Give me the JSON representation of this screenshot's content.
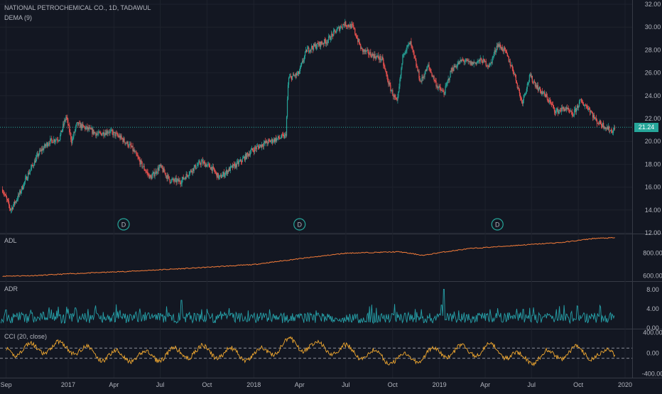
{
  "header": {
    "title": "NATIONAL PETROCHEMICAL CO., 1D, TADAWUL",
    "indicator": "DEMA (9)"
  },
  "panes": {
    "adl_label": "ADL",
    "adr_label": "ADR",
    "cci_label": "CCI (20, close)"
  },
  "current_price": "21.24",
  "dividend_marker": "D",
  "colors": {
    "background": "#131722",
    "grid": "#1e222d",
    "up": "#26a69a",
    "down": "#ef5350",
    "adl": "#f57c39",
    "adr": "#26a0a8",
    "cci": "#f0a830",
    "dashed": "#b2b5be"
  },
  "chart_data": [
    {
      "type": "candlestick",
      "title": "NATIONAL PETROCHEMICAL CO., 1D, TADAWUL",
      "x_ticks": [
        "Sep",
        "2017",
        "Apr",
        "Jul",
        "Oct",
        "2018",
        "Apr",
        "Jul",
        "Oct",
        "2019",
        "Apr",
        "Jul",
        "Oct",
        "2020"
      ],
      "y_ticks": [
        "32.00",
        "30.00",
        "28.00",
        "26.00",
        "24.00",
        "22.00",
        "20.00",
        "18.00",
        "16.00",
        "14.00",
        "12.00"
      ],
      "ylim": [
        12,
        32
      ],
      "x_range": [
        "2016-08",
        "2020-01"
      ],
      "series": [
        {
          "name": "NATIONAL PETROCHEMICAL CO.",
          "points": [
            {
              "x": "2016-08-25",
              "y": 15.8
            },
            {
              "x": "2016-09-10",
              "y": 14.0
            },
            {
              "x": "2016-09-25",
              "y": 15.2
            },
            {
              "x": "2016-10-15",
              "y": 17.2
            },
            {
              "x": "2016-11-05",
              "y": 19.0
            },
            {
              "x": "2016-11-25",
              "y": 20.0
            },
            {
              "x": "2016-12-15",
              "y": 20.3
            },
            {
              "x": "2016-12-28",
              "y": 22.2
            },
            {
              "x": "2017-01-08",
              "y": 20.0
            },
            {
              "x": "2017-01-18",
              "y": 21.5
            },
            {
              "x": "2017-02-08",
              "y": 21.1
            },
            {
              "x": "2017-03-01",
              "y": 20.6
            },
            {
              "x": "2017-03-22",
              "y": 20.9
            },
            {
              "x": "2017-04-12",
              "y": 20.4
            },
            {
              "x": "2017-05-05",
              "y": 19.5
            },
            {
              "x": "2017-05-25",
              "y": 18.0
            },
            {
              "x": "2017-06-12",
              "y": 16.8
            },
            {
              "x": "2017-07-01",
              "y": 17.8
            },
            {
              "x": "2017-07-20",
              "y": 16.6
            },
            {
              "x": "2017-08-10",
              "y": 16.5
            },
            {
              "x": "2017-09-01",
              "y": 17.5
            },
            {
              "x": "2017-09-20",
              "y": 18.2
            },
            {
              "x": "2017-10-10",
              "y": 17.7
            },
            {
              "x": "2017-10-25",
              "y": 16.8
            },
            {
              "x": "2017-11-15",
              "y": 17.6
            },
            {
              "x": "2017-12-05",
              "y": 18.2
            },
            {
              "x": "2017-12-28",
              "y": 19.2
            },
            {
              "x": "2018-01-20",
              "y": 19.8
            },
            {
              "x": "2018-02-20",
              "y": 20.3
            },
            {
              "x": "2018-03-05",
              "y": 20.5
            },
            {
              "x": "2018-03-10",
              "y": 25.5
            },
            {
              "x": "2018-03-30",
              "y": 25.9
            },
            {
              "x": "2018-04-15",
              "y": 28.0
            },
            {
              "x": "2018-05-05",
              "y": 28.4
            },
            {
              "x": "2018-05-25",
              "y": 28.8
            },
            {
              "x": "2018-06-10",
              "y": 29.6
            },
            {
              "x": "2018-06-28",
              "y": 30.3
            },
            {
              "x": "2018-07-15",
              "y": 30.0
            },
            {
              "x": "2018-08-01",
              "y": 28.0
            },
            {
              "x": "2018-08-20",
              "y": 27.6
            },
            {
              "x": "2018-09-10",
              "y": 27.2
            },
            {
              "x": "2018-09-25",
              "y": 24.8
            },
            {
              "x": "2018-10-10",
              "y": 23.3
            },
            {
              "x": "2018-10-22",
              "y": 27.8
            },
            {
              "x": "2018-11-05",
              "y": 28.6
            },
            {
              "x": "2018-11-25",
              "y": 25.2
            },
            {
              "x": "2018-12-10",
              "y": 26.6
            },
            {
              "x": "2018-12-28",
              "y": 24.8
            },
            {
              "x": "2019-01-10",
              "y": 24.2
            },
            {
              "x": "2019-01-25",
              "y": 26.3
            },
            {
              "x": "2019-02-15",
              "y": 27.1
            },
            {
              "x": "2019-03-05",
              "y": 26.8
            },
            {
              "x": "2019-03-25",
              "y": 27.1
            },
            {
              "x": "2019-04-10",
              "y": 26.6
            },
            {
              "x": "2019-04-25",
              "y": 28.5
            },
            {
              "x": "2019-05-10",
              "y": 27.9
            },
            {
              "x": "2019-05-28",
              "y": 26.0
            },
            {
              "x": "2019-06-12",
              "y": 23.4
            },
            {
              "x": "2019-06-28",
              "y": 25.7
            },
            {
              "x": "2019-07-15",
              "y": 24.6
            },
            {
              "x": "2019-08-01",
              "y": 23.8
            },
            {
              "x": "2019-08-18",
              "y": 22.6
            },
            {
              "x": "2019-09-05",
              "y": 22.9
            },
            {
              "x": "2019-09-20",
              "y": 22.3
            },
            {
              "x": "2019-10-05",
              "y": 23.5
            },
            {
              "x": "2019-10-22",
              "y": 22.9
            },
            {
              "x": "2019-11-05",
              "y": 21.8
            },
            {
              "x": "2019-11-20",
              "y": 21.4
            },
            {
              "x": "2019-12-05",
              "y": 20.9
            },
            {
              "x": "2019-12-12",
              "y": 21.1
            }
          ]
        }
      ]
    },
    {
      "type": "line",
      "title": "ADL",
      "y_ticks": [
        "800.00",
        "600.00"
      ],
      "ylim": [
        560,
        960
      ],
      "series": [
        {
          "name": "ADL",
          "points": [
            {
              "x": "2016-08-25",
              "y": 598
            },
            {
              "x": "2016-11-01",
              "y": 603
            },
            {
              "x": "2017-01-01",
              "y": 618
            },
            {
              "x": "2017-05-01",
              "y": 640
            },
            {
              "x": "2017-09-01",
              "y": 668
            },
            {
              "x": "2018-01-01",
              "y": 700
            },
            {
              "x": "2018-03-15",
              "y": 742
            },
            {
              "x": "2018-07-01",
              "y": 800
            },
            {
              "x": "2018-10-15",
              "y": 812
            },
            {
              "x": "2018-12-01",
              "y": 780
            },
            {
              "x": "2019-01-01",
              "y": 805
            },
            {
              "x": "2019-03-01",
              "y": 840
            },
            {
              "x": "2019-06-01",
              "y": 868
            },
            {
              "x": "2019-09-01",
              "y": 895
            },
            {
              "x": "2019-11-01",
              "y": 930
            },
            {
              "x": "2019-12-12",
              "y": 935
            }
          ]
        }
      ]
    },
    {
      "type": "line",
      "title": "ADR",
      "y_ticks": [
        "8.00",
        "4.00",
        "0.00"
      ],
      "ylim": [
        0,
        9.5
      ],
      "series": [
        {
          "name": "ADR",
          "points": [
            {
              "x": "2016-09-01",
              "y": 3.8
            },
            {
              "x": "2017-01-15",
              "y": 4.2
            },
            {
              "x": "2017-06-15",
              "y": 2.9
            },
            {
              "x": "2017-08-12",
              "y": 5.8
            },
            {
              "x": "2018-01-15",
              "y": 3.1
            },
            {
              "x": "2018-10-05",
              "y": 5.0
            },
            {
              "x": "2019-01-05",
              "y": 4.8
            },
            {
              "x": "2019-01-10",
              "y": 8.1
            },
            {
              "x": "2019-06-15",
              "y": 3.9
            },
            {
              "x": "2019-12-12",
              "y": 2.6
            }
          ]
        }
      ]
    },
    {
      "type": "line",
      "title": "CCI (20, close)",
      "y_ticks": [
        "400.00",
        "0.00",
        "-400.00"
      ],
      "ylim": [
        -450,
        450
      ],
      "series": [
        {
          "name": "CCI",
          "points": [
            {
              "x": "2016-09-01",
              "y": 100
            },
            {
              "x": "2016-12-28",
              "y": 260
            },
            {
              "x": "2017-03-01",
              "y": -60
            },
            {
              "x": "2017-05-25",
              "y": -150
            },
            {
              "x": "2017-09-20",
              "y": 80
            },
            {
              "x": "2018-01-01",
              "y": -100
            },
            {
              "x": "2018-03-12",
              "y": 370
            },
            {
              "x": "2018-06-28",
              "y": 120
            },
            {
              "x": "2018-10-10",
              "y": -250
            },
            {
              "x": "2019-01-15",
              "y": 60
            },
            {
              "x": "2019-04-25",
              "y": 150
            },
            {
              "x": "2019-06-12",
              "y": -240
            },
            {
              "x": "2019-10-05",
              "y": 80
            },
            {
              "x": "2019-11-20",
              "y": -120
            },
            {
              "x": "2019-12-12",
              "y": 60
            }
          ]
        }
      ],
      "bands": [
        100,
        -100
      ]
    }
  ]
}
